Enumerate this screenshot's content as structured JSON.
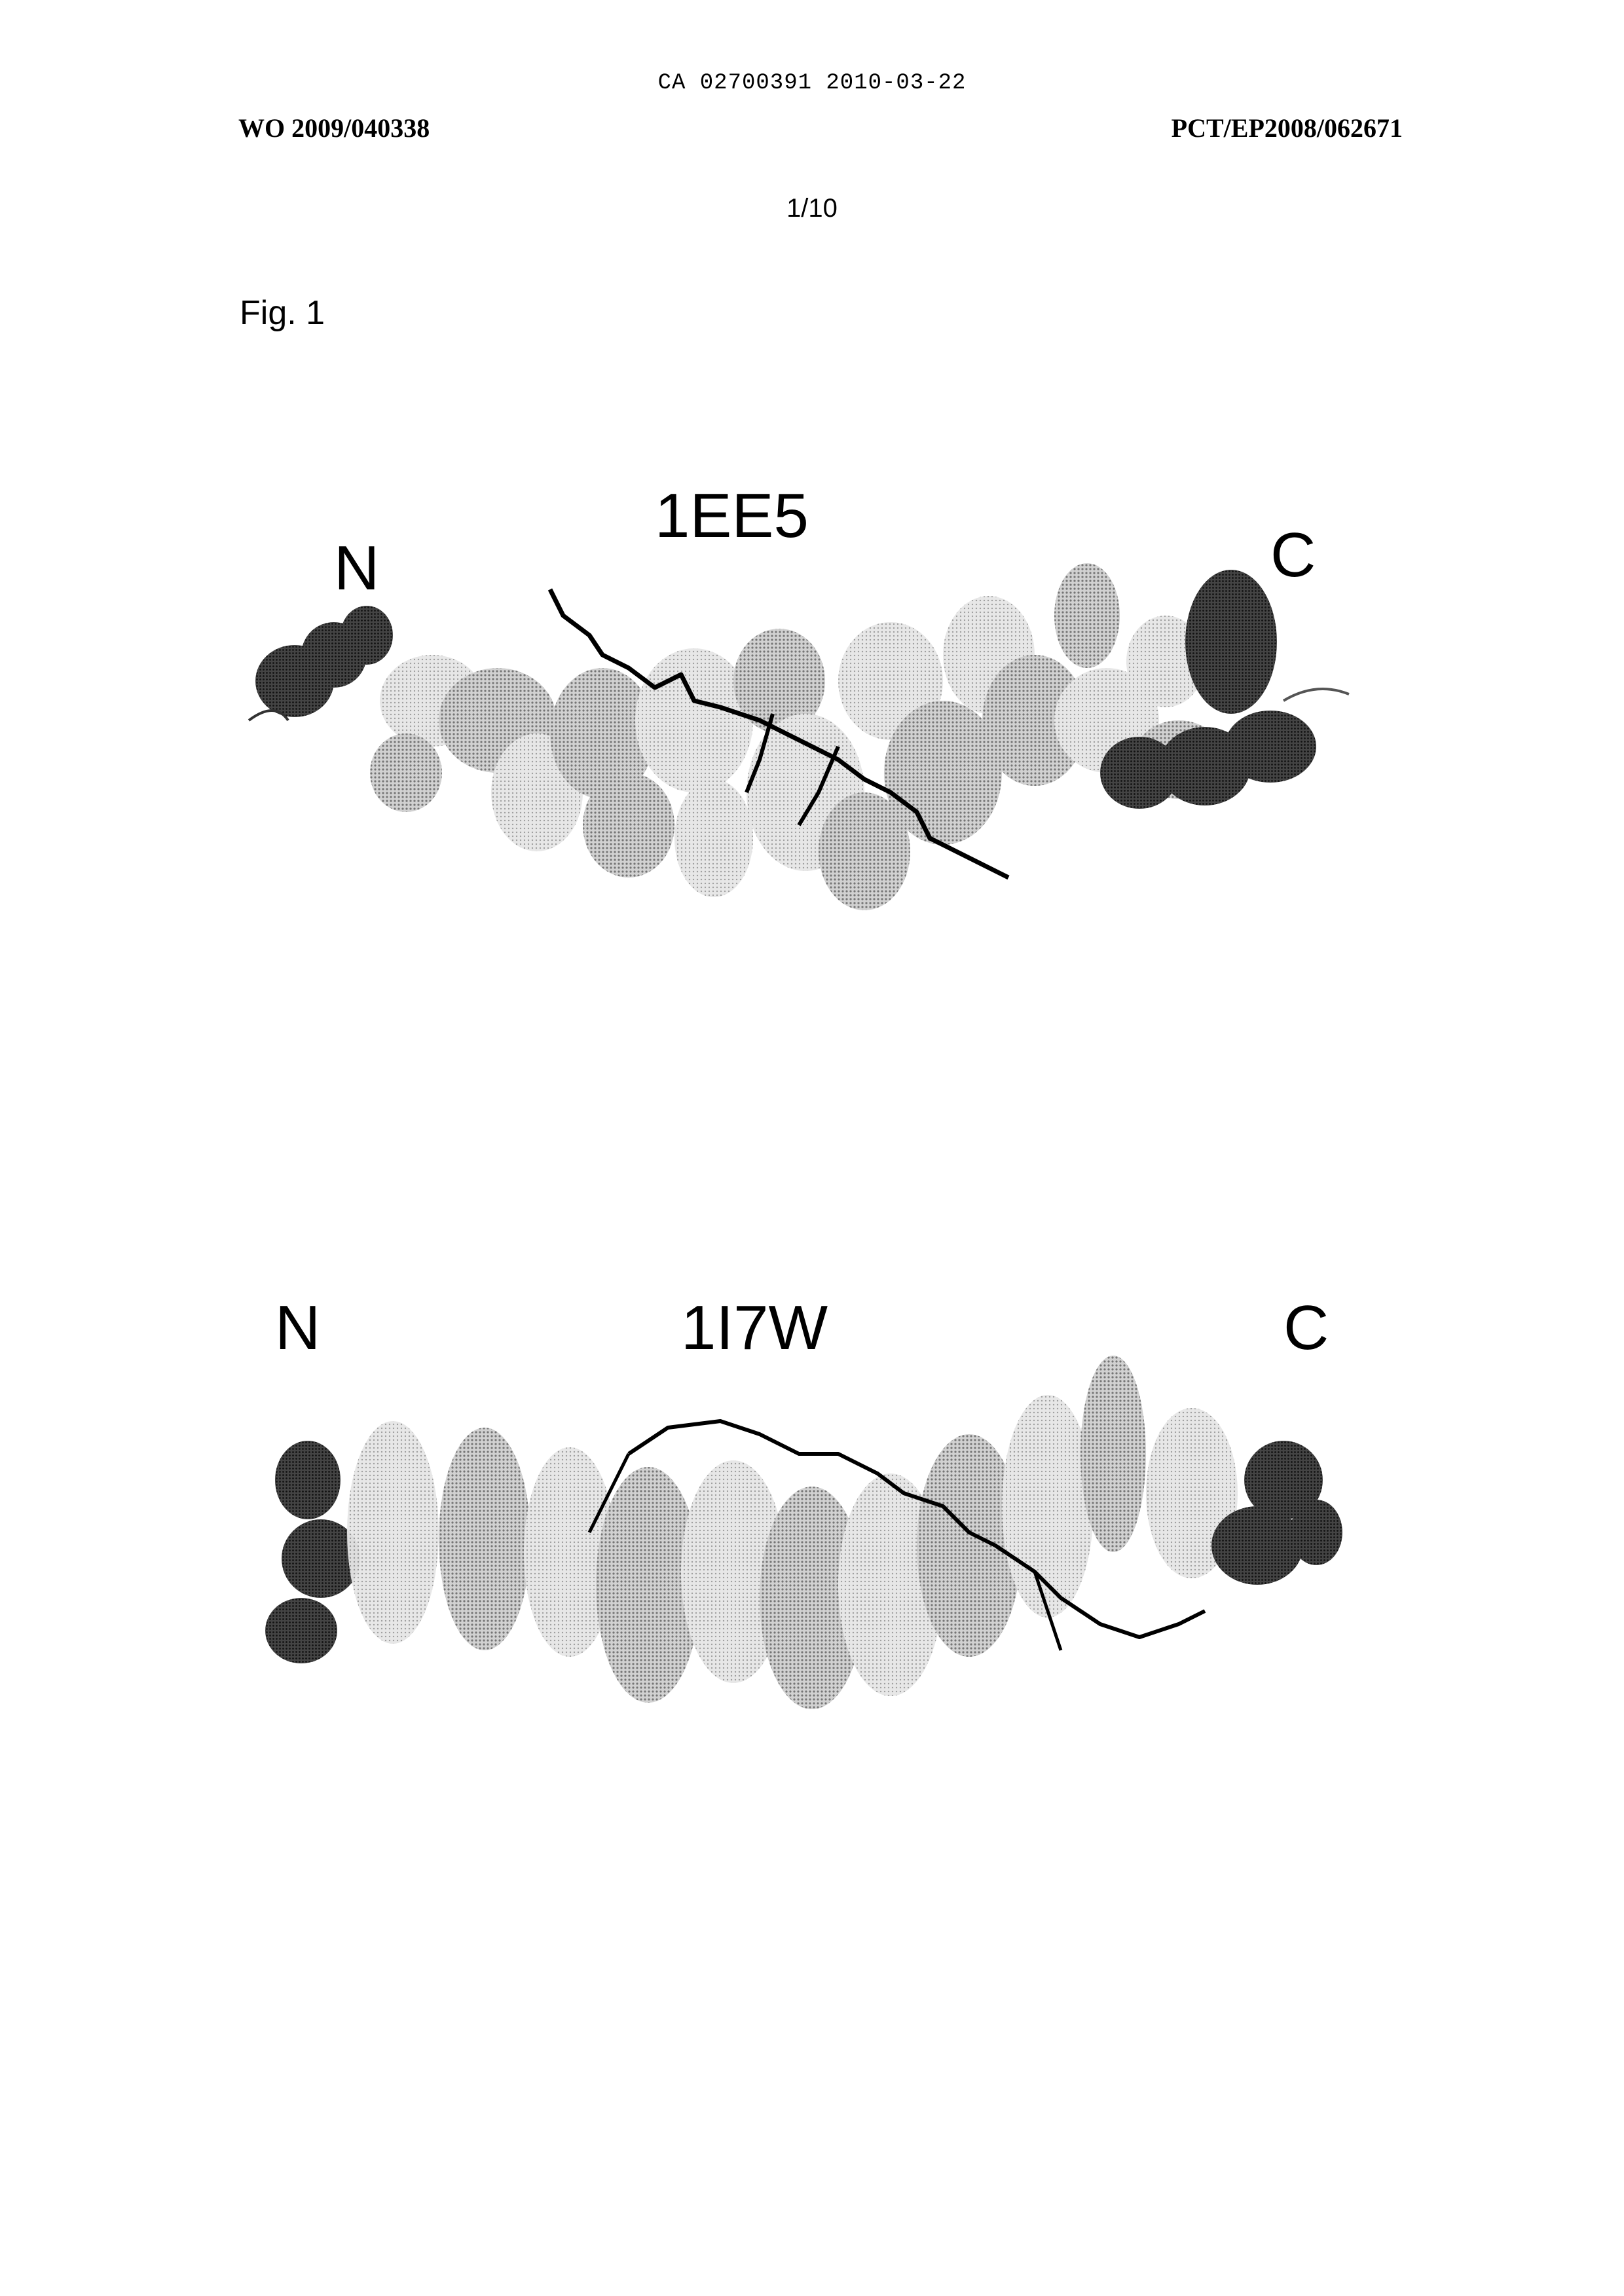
{
  "header": {
    "ca_line": "CA 02700391 2010-03-22",
    "left": "WO 2009/040338",
    "right": "PCT/EP2008/062671"
  },
  "page_number": "1/10",
  "figure": {
    "label": "Fig. 1",
    "panels": [
      {
        "title": "1EE5",
        "n_terminus": "N",
        "c_terminus": "C"
      },
      {
        "title": "1I7W",
        "n_terminus": "N",
        "c_terminus": "C"
      }
    ]
  }
}
